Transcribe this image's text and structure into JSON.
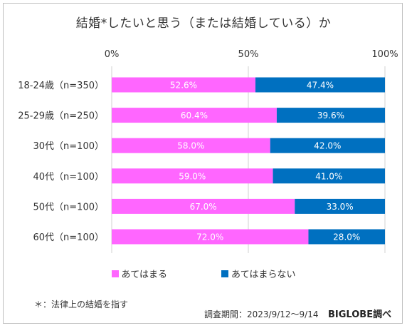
{
  "title": "結婚*したいと思う（または結婚している）か",
  "chart_data": {
    "type": "bar",
    "orientation": "horizontal",
    "stacked": true,
    "title": "結婚*したいと思う（または結婚している）か",
    "categories": [
      "18-24歳（n=350）",
      "25-29歳（n=250）",
      "30代（n=100）",
      "40代（n=100）",
      "50代（n=100）",
      "60代（n=100）"
    ],
    "series": [
      {
        "name": "あてはまる",
        "color": "#ff66ff",
        "values": [
          52.6,
          60.4,
          58.0,
          59.0,
          67.0,
          72.0
        ]
      },
      {
        "name": "あてはまらない",
        "color": "#0070c0",
        "values": [
          47.4,
          39.6,
          42.0,
          41.0,
          33.0,
          28.0
        ]
      }
    ],
    "value_labels": [
      [
        "52.6%",
        "60.4%",
        "58.0%",
        "59.0%",
        "67.0%",
        "72.0%"
      ],
      [
        "47.4%",
        "39.6%",
        "42.0%",
        "41.0%",
        "33.0%",
        "28.0%"
      ]
    ],
    "xlim": [
      0,
      100
    ],
    "xticks": [
      "0%",
      "50%",
      "100%"
    ],
    "grid": false,
    "legend_position": "bottom"
  },
  "footnote": "＊：法律上の結婚を指す",
  "source": "調査期間：2023/9/12〜9/14",
  "brand": "BIGLOBE調べ"
}
